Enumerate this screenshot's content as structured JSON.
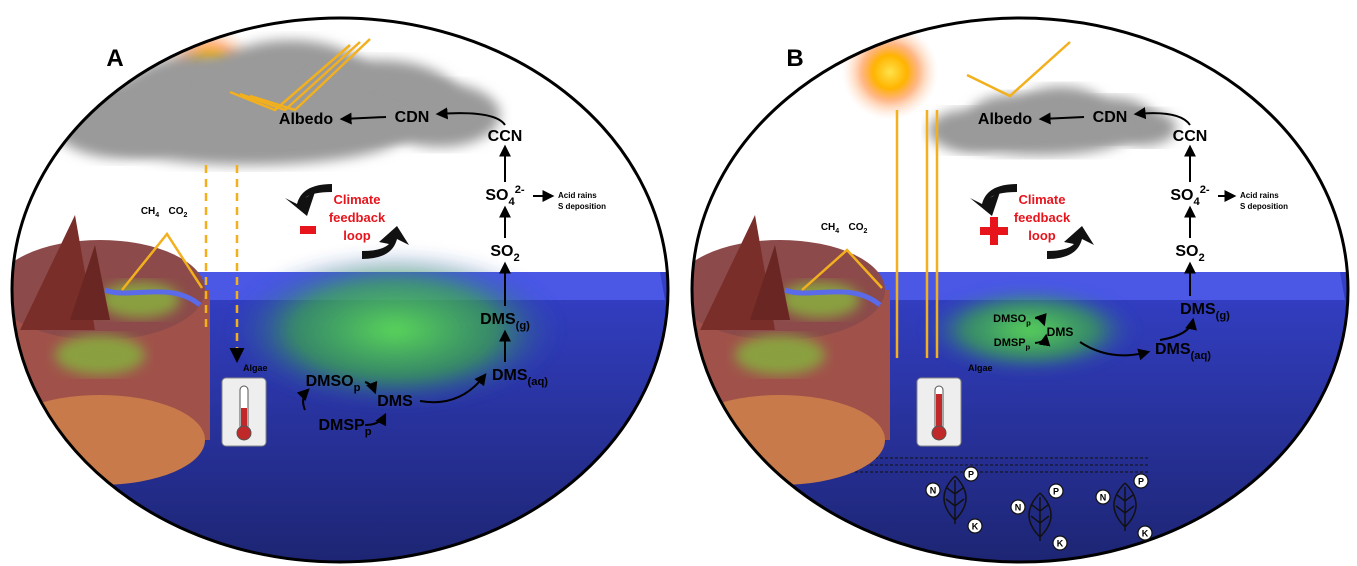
{
  "panels": [
    {
      "label": "A",
      "albedo": "Albedo",
      "cdn": "CDN",
      "ccn": "CCN",
      "so4": {
        "base": "SO",
        "sub": "4",
        "sup": "2-"
      },
      "acid": [
        "Acid rains",
        "S deposition"
      ],
      "so2": {
        "base": "SO",
        "sub": "2"
      },
      "dms_g": {
        "base": "DMS",
        "sub": "(g)"
      },
      "dms_aq": {
        "base": "DMS",
        "sub": "(aq)"
      },
      "dms": "DMS",
      "dmso": {
        "base": "DMSO",
        "sub": "p"
      },
      "dmsp": {
        "base": "DMSP",
        "sub": "p"
      },
      "algae": "Algae",
      "feedback": [
        "Climate",
        "feedback",
        "loop"
      ],
      "gases": [
        {
          "base": "CH",
          "sub": "4"
        },
        {
          "base": "CO",
          "sub": "2"
        }
      ]
    },
    {
      "label": "B",
      "albedo": "Albedo",
      "cdn": "CDN",
      "ccn": "CCN",
      "so4": {
        "base": "SO",
        "sub": "4",
        "sup": "2-"
      },
      "acid": [
        "Acid rains",
        "S deposition"
      ],
      "so2": {
        "base": "SO",
        "sub": "2"
      },
      "dms_g": {
        "base": "DMS",
        "sub": "(g)"
      },
      "dms_aq": {
        "base": "DMS",
        "sub": "(aq)"
      },
      "dms": "DMS",
      "dmso": {
        "base": "DMSO",
        "sub": "p"
      },
      "dmsp": {
        "base": "DMSP",
        "sub": "p"
      },
      "algae": "Algae",
      "feedback": [
        "Climate",
        "feedback",
        "loop"
      ],
      "gases": [
        {
          "base": "CH",
          "sub": "4"
        },
        {
          "base": "CO",
          "sub": "2"
        }
      ],
      "nutrients": [
        [
          "N",
          "P",
          "K"
        ],
        [
          "N",
          "P",
          "K"
        ],
        [
          "N",
          "P",
          "K"
        ]
      ]
    }
  ]
}
